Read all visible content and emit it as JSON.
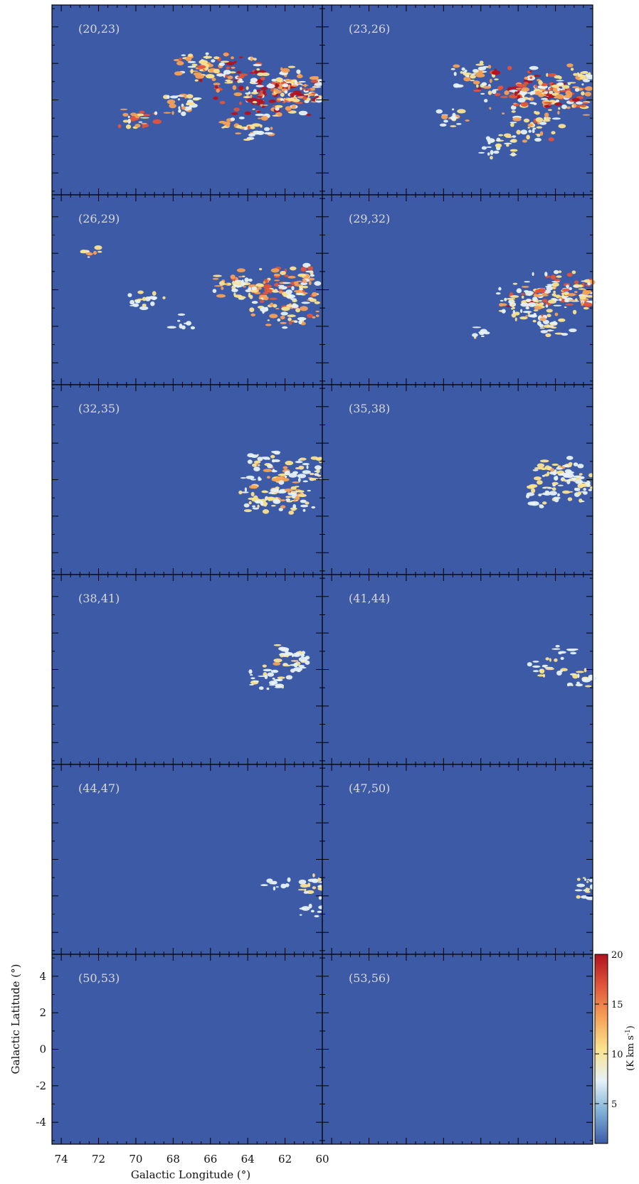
{
  "chart_data": {
    "type": "heatmap",
    "layout": {
      "rows": 6,
      "cols": 2
    },
    "panels": [
      {
        "label": "(20,23)",
        "v_range": [
          20,
          23
        ],
        "intensity": 1.0,
        "clumps": [
          [
            65.0,
            1.5,
            6,
            1.0
          ],
          [
            63.5,
            0.3,
            8,
            1.0
          ],
          [
            62.0,
            0.0,
            6,
            1.0
          ],
          [
            60.5,
            0.2,
            4,
            0.9
          ],
          [
            70.0,
            -1.0,
            3,
            0.8
          ],
          [
            66.5,
            1.8,
            4,
            0.7
          ],
          [
            64.0,
            -1.5,
            4,
            0.6
          ],
          [
            61.5,
            1.0,
            4,
            0.7
          ],
          [
            67.5,
            -0.3,
            3,
            0.5
          ]
        ]
      },
      {
        "label": "(23,26)",
        "v_range": [
          23,
          26
        ],
        "intensity": 0.9,
        "clumps": [
          [
            64.0,
            0.5,
            8,
            1.0
          ],
          [
            62.5,
            0.3,
            6,
            1.0
          ],
          [
            61.0,
            0.0,
            5,
            0.9
          ],
          [
            63.0,
            -1.5,
            4,
            0.7
          ],
          [
            66.5,
            1.3,
            4,
            0.6
          ],
          [
            67.5,
            -1.0,
            2,
            0.6
          ],
          [
            60.5,
            1.2,
            4,
            0.6
          ],
          [
            65.0,
            -2.5,
            3,
            0.4
          ]
        ]
      },
      {
        "label": "(26,29)",
        "v_range": [
          26,
          29
        ],
        "intensity": 0.8,
        "clumps": [
          [
            63.0,
            0.0,
            7,
            1.0
          ],
          [
            62.0,
            -1.0,
            6,
            0.9
          ],
          [
            61.0,
            0.5,
            5,
            0.8
          ],
          [
            64.5,
            0.3,
            4,
            0.6
          ],
          [
            72.5,
            2.0,
            1,
            0.6
          ],
          [
            69.5,
            -0.5,
            2,
            0.4
          ],
          [
            67.5,
            -1.8,
            1,
            0.3
          ]
        ]
      },
      {
        "label": "(29,32)",
        "v_range": [
          29,
          32
        ],
        "intensity": 0.8,
        "clumps": [
          [
            63.0,
            -0.3,
            7,
            1.0
          ],
          [
            61.5,
            0.0,
            6,
            0.9
          ],
          [
            60.5,
            -0.5,
            5,
            0.8
          ],
          [
            62.0,
            -1.8,
            3,
            0.6
          ],
          [
            64.0,
            -1.0,
            3,
            0.5
          ],
          [
            66.0,
            -2.3,
            1,
            0.3
          ]
        ]
      },
      {
        "label": "(32,35)",
        "v_range": [
          32,
          35
        ],
        "intensity": 0.6,
        "clumps": [
          [
            62.5,
            0.0,
            6,
            0.9
          ],
          [
            61.5,
            -1.0,
            4,
            0.8
          ],
          [
            63.5,
            -1.2,
            3,
            0.6
          ],
          [
            60.5,
            0.5,
            3,
            0.6
          ],
          [
            63.0,
            1.0,
            2,
            0.5
          ]
        ]
      },
      {
        "label": "(35,38)",
        "v_range": [
          35,
          38
        ],
        "intensity": 0.5,
        "clumps": [
          [
            62.0,
            0.5,
            4,
            0.8
          ],
          [
            62.5,
            -0.8,
            3,
            0.7
          ],
          [
            61.0,
            0.0,
            3,
            0.6
          ],
          [
            60.5,
            -0.7,
            2,
            0.5
          ]
        ]
      },
      {
        "label": "(38,41)",
        "v_range": [
          38,
          41
        ],
        "intensity": 0.5,
        "clumps": [
          [
            62.0,
            0.8,
            2,
            0.8
          ],
          [
            63.0,
            -0.5,
            3,
            0.5
          ],
          [
            61.0,
            0.3,
            2,
            0.5
          ]
        ]
      },
      {
        "label": "(41,44)",
        "v_range": [
          41,
          44
        ],
        "intensity": 0.5,
        "clumps": [
          [
            62.5,
            0.0,
            2,
            0.6
          ],
          [
            60.5,
            -0.5,
            2,
            0.6
          ],
          [
            61.5,
            1.0,
            1,
            0.4
          ]
        ]
      },
      {
        "label": "(44,47)",
        "v_range": [
          44,
          47
        ],
        "intensity": 0.5,
        "clumps": [
          [
            60.2,
            -1.5,
            3,
            0.7
          ],
          [
            60.5,
            -2.8,
            1,
            0.3
          ],
          [
            62.5,
            -1.2,
            1,
            0.3
          ]
        ]
      },
      {
        "label": "(47,50)",
        "v_range": [
          47,
          50
        ],
        "intensity": 0.5,
        "clumps": [
          [
            60.3,
            -1.6,
            2,
            0.7
          ]
        ]
      },
      {
        "label": "(50,53)",
        "v_range": [
          50,
          53
        ],
        "intensity": 0.0,
        "clumps": []
      },
      {
        "label": "(53,56)",
        "v_range": [
          53,
          56
        ],
        "intensity": 0.0,
        "clumps": []
      }
    ],
    "xlabel": "Galactic Longitude (°)",
    "ylabel": "Galactic Latitude (°)",
    "xlim": [
      74.5,
      60
    ],
    "ylim": [
      -5.2,
      5.2
    ],
    "x_ticks": [
      74,
      72,
      70,
      68,
      66,
      64,
      62,
      60
    ],
    "x_tick_labels": [
      "74",
      "72",
      "70",
      "68",
      "66",
      "64",
      "62",
      "60"
    ],
    "y_ticks": [
      4,
      2,
      0,
      -2,
      -4
    ],
    "y_tick_labels": [
      "4",
      "2",
      "0",
      "-2",
      "-4"
    ],
    "colorbar": {
      "label": "(K km s",
      "label_exp": "-1",
      "label_close": ")",
      "range": [
        1,
        20
      ],
      "ticks": [
        5,
        10,
        15,
        20
      ],
      "tick_labels": [
        "5",
        "10",
        "15",
        "20"
      ],
      "colors": [
        "#3c5aa6",
        "#7fb0d6",
        "#e6f2f7",
        "#fbe38e",
        "#f6a157",
        "#e0553b",
        "#b1121e"
      ]
    },
    "background_color": "#3c5aa6"
  }
}
